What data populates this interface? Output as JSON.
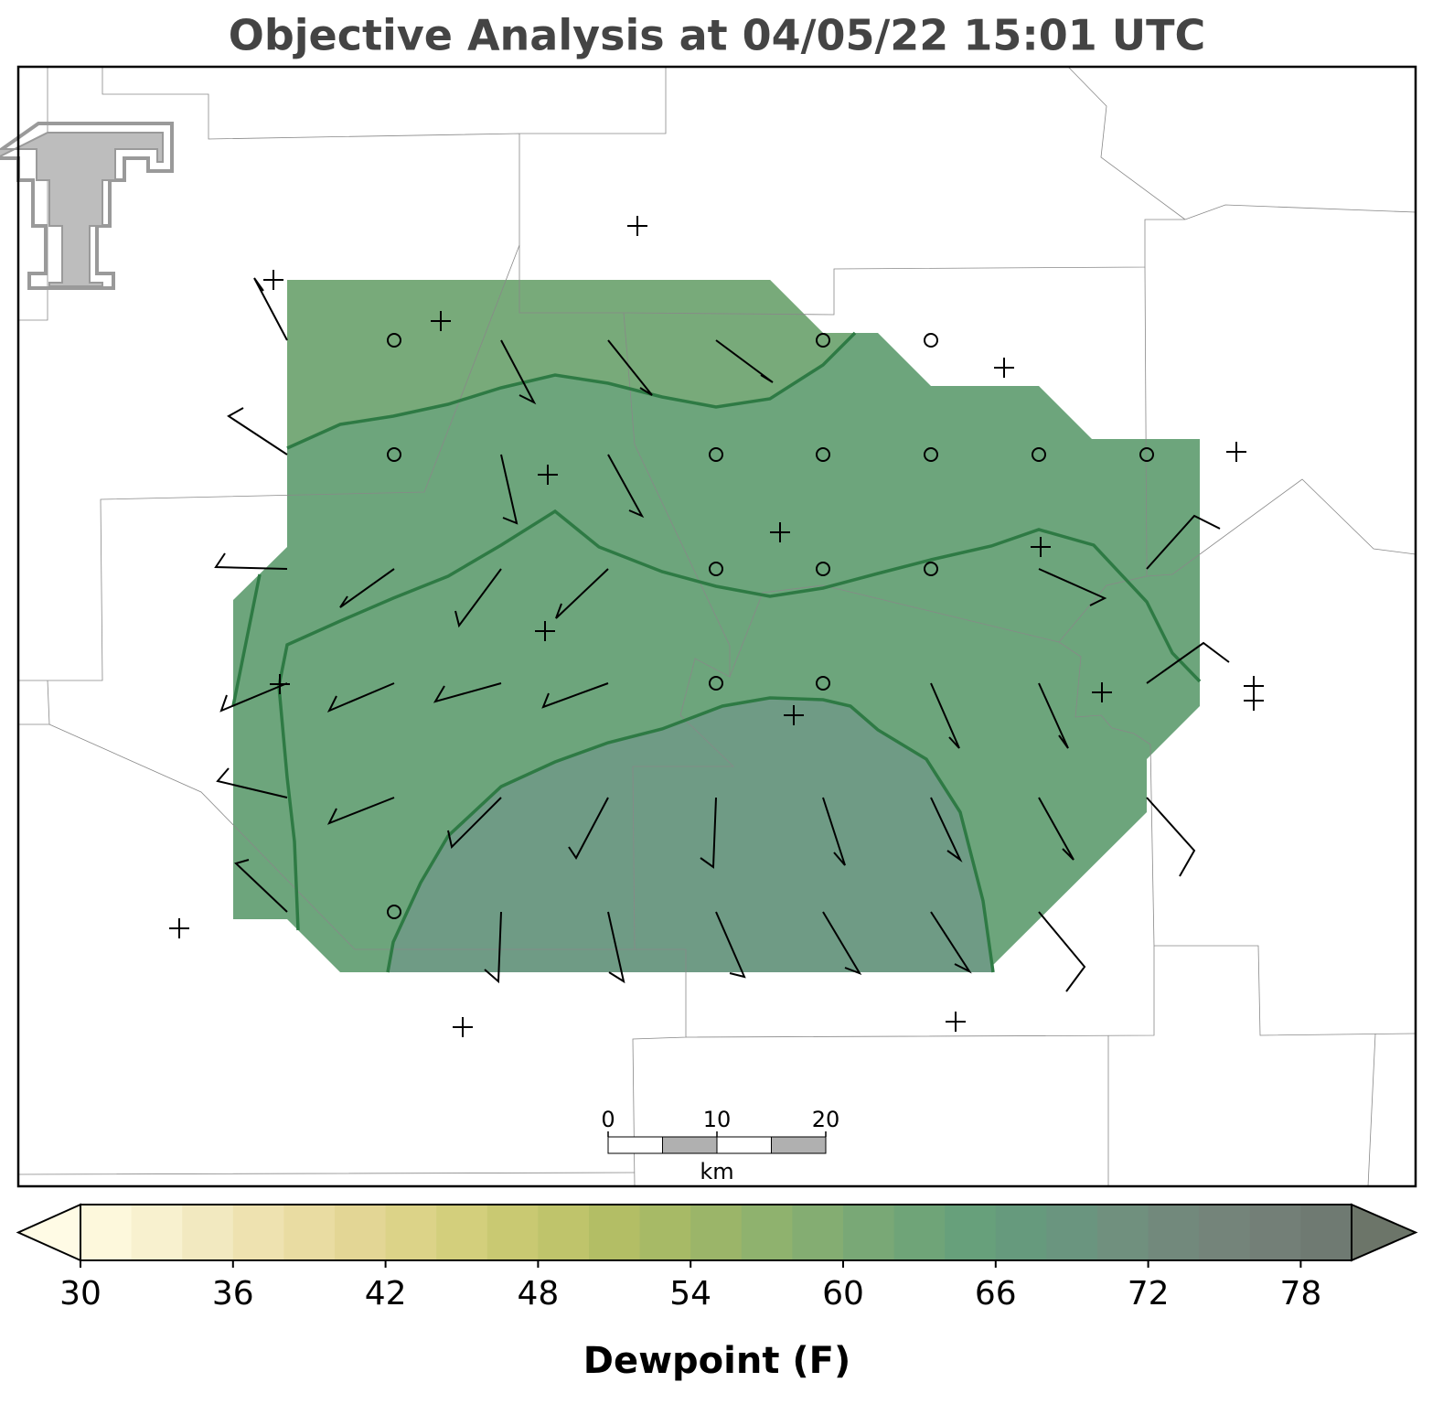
{
  "title": "Objective Analysis at 04/05/22 15:01 UTC",
  "colorbar": {
    "label": "Dewpoint (F)",
    "lim": [
      30,
      80
    ],
    "ticks": [
      30,
      36,
      42,
      48,
      54,
      60,
      66,
      72,
      78
    ],
    "colors": [
      "#fdf8dc",
      "#f8f1cf",
      "#f2e9c0",
      "#eee2b0",
      "#e9dca2",
      "#e3d695",
      "#dcd388",
      "#d3cf7c",
      "#c9c972",
      "#bfc46b",
      "#b3be65",
      "#a7ba66",
      "#9bb569",
      "#8fb26e",
      "#84ad72",
      "#79a876",
      "#6fa478",
      "#67a07b",
      "#669a7d",
      "#6a957f",
      "#70907e",
      "#72897c",
      "#74847a",
      "#737f77",
      "#6f7a72"
    ],
    "under_color": "#fffbe5",
    "over_color": "#6c7569"
  },
  "scale_bar": {
    "ticks": [
      0,
      10,
      20
    ],
    "unit": "km"
  }
}
